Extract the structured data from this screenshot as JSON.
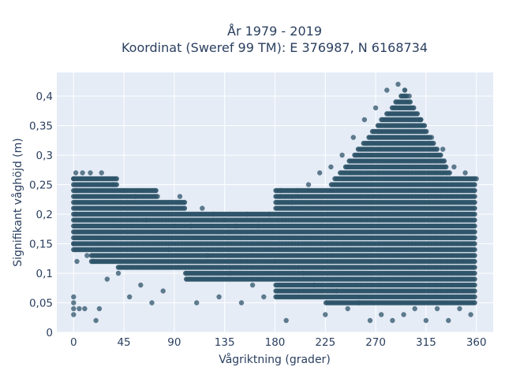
{
  "chart_data": {
    "type": "scatter",
    "title": "År 1979 - 2019",
    "subtitle": "Koordinat (Sweref 99 TM): E 376987, N 6168734",
    "xlabel": "Vågriktning (grader)",
    "ylabel": "Signifikant våghöjd (m)",
    "xlim": [
      -15,
      375
    ],
    "ylim": [
      0,
      0.44
    ],
    "x_ticks": [
      0,
      45,
      90,
      135,
      180,
      225,
      270,
      315,
      360
    ],
    "x_tick_labels": [
      "0",
      "45",
      "90",
      "135",
      "180",
      "225",
      "270",
      "315",
      "360"
    ],
    "y_ticks": [
      0,
      0.05,
      0.1,
      0.15,
      0.2,
      0.25,
      0.3,
      0.35,
      0.4
    ],
    "y_tick_labels": [
      "0",
      "0,05",
      "0,1",
      "0,15",
      "0,2",
      "0,25",
      "0,3",
      "0,35",
      "0,4"
    ],
    "grid": true,
    "marker_color": "#2f5469",
    "background_color": "#e5ecf6",
    "x": [
      0,
      0,
      0,
      0,
      0,
      0,
      2,
      2,
      3,
      3,
      5,
      8,
      10,
      12,
      15,
      18,
      20,
      23,
      25,
      30,
      35,
      40,
      45,
      50,
      55,
      60,
      65,
      70,
      75,
      80,
      85,
      90,
      95,
      100,
      105,
      110,
      115,
      120,
      125,
      130,
      135,
      140,
      145,
      150,
      155,
      160,
      165,
      170,
      175,
      180,
      185,
      190,
      195,
      200,
      205,
      210,
      215,
      220,
      225,
      230,
      235,
      240,
      245,
      250,
      255,
      260,
      265,
      270,
      275,
      280,
      285,
      290,
      295,
      300,
      305,
      310,
      315,
      320,
      325,
      330,
      335,
      340,
      345,
      350,
      355,
      360
    ],
    "y": [
      0.04,
      0.05,
      0.06,
      0.03,
      0.15,
      0.26,
      0.27,
      0.2,
      0.24,
      0.12,
      0.04,
      0.27,
      0.04,
      0.13,
      0.27,
      0.12,
      0.02,
      0.04,
      0.27,
      0.09,
      0.25,
      0.1,
      0.24,
      0.06,
      0.23,
      0.08,
      0.19,
      0.05,
      0.23,
      0.07,
      0.14,
      0.18,
      0.23,
      0.1,
      0.18,
      0.05,
      0.21,
      0.13,
      0.2,
      0.06,
      0.19,
      0.1,
      0.18,
      0.05,
      0.2,
      0.08,
      0.18,
      0.06,
      0.2,
      0.12,
      0.24,
      0.02,
      0.22,
      0.24,
      0.1,
      0.25,
      0.08,
      0.27,
      0.03,
      0.28,
      0.07,
      0.3,
      0.04,
      0.33,
      0.05,
      0.36,
      0.02,
      0.38,
      0.03,
      0.41,
      0.02,
      0.42,
      0.03,
      0.4,
      0.04,
      0.36,
      0.02,
      0.33,
      0.04,
      0.31,
      0.02,
      0.28,
      0.04,
      0.27,
      0.03,
      0.26
    ]
  }
}
